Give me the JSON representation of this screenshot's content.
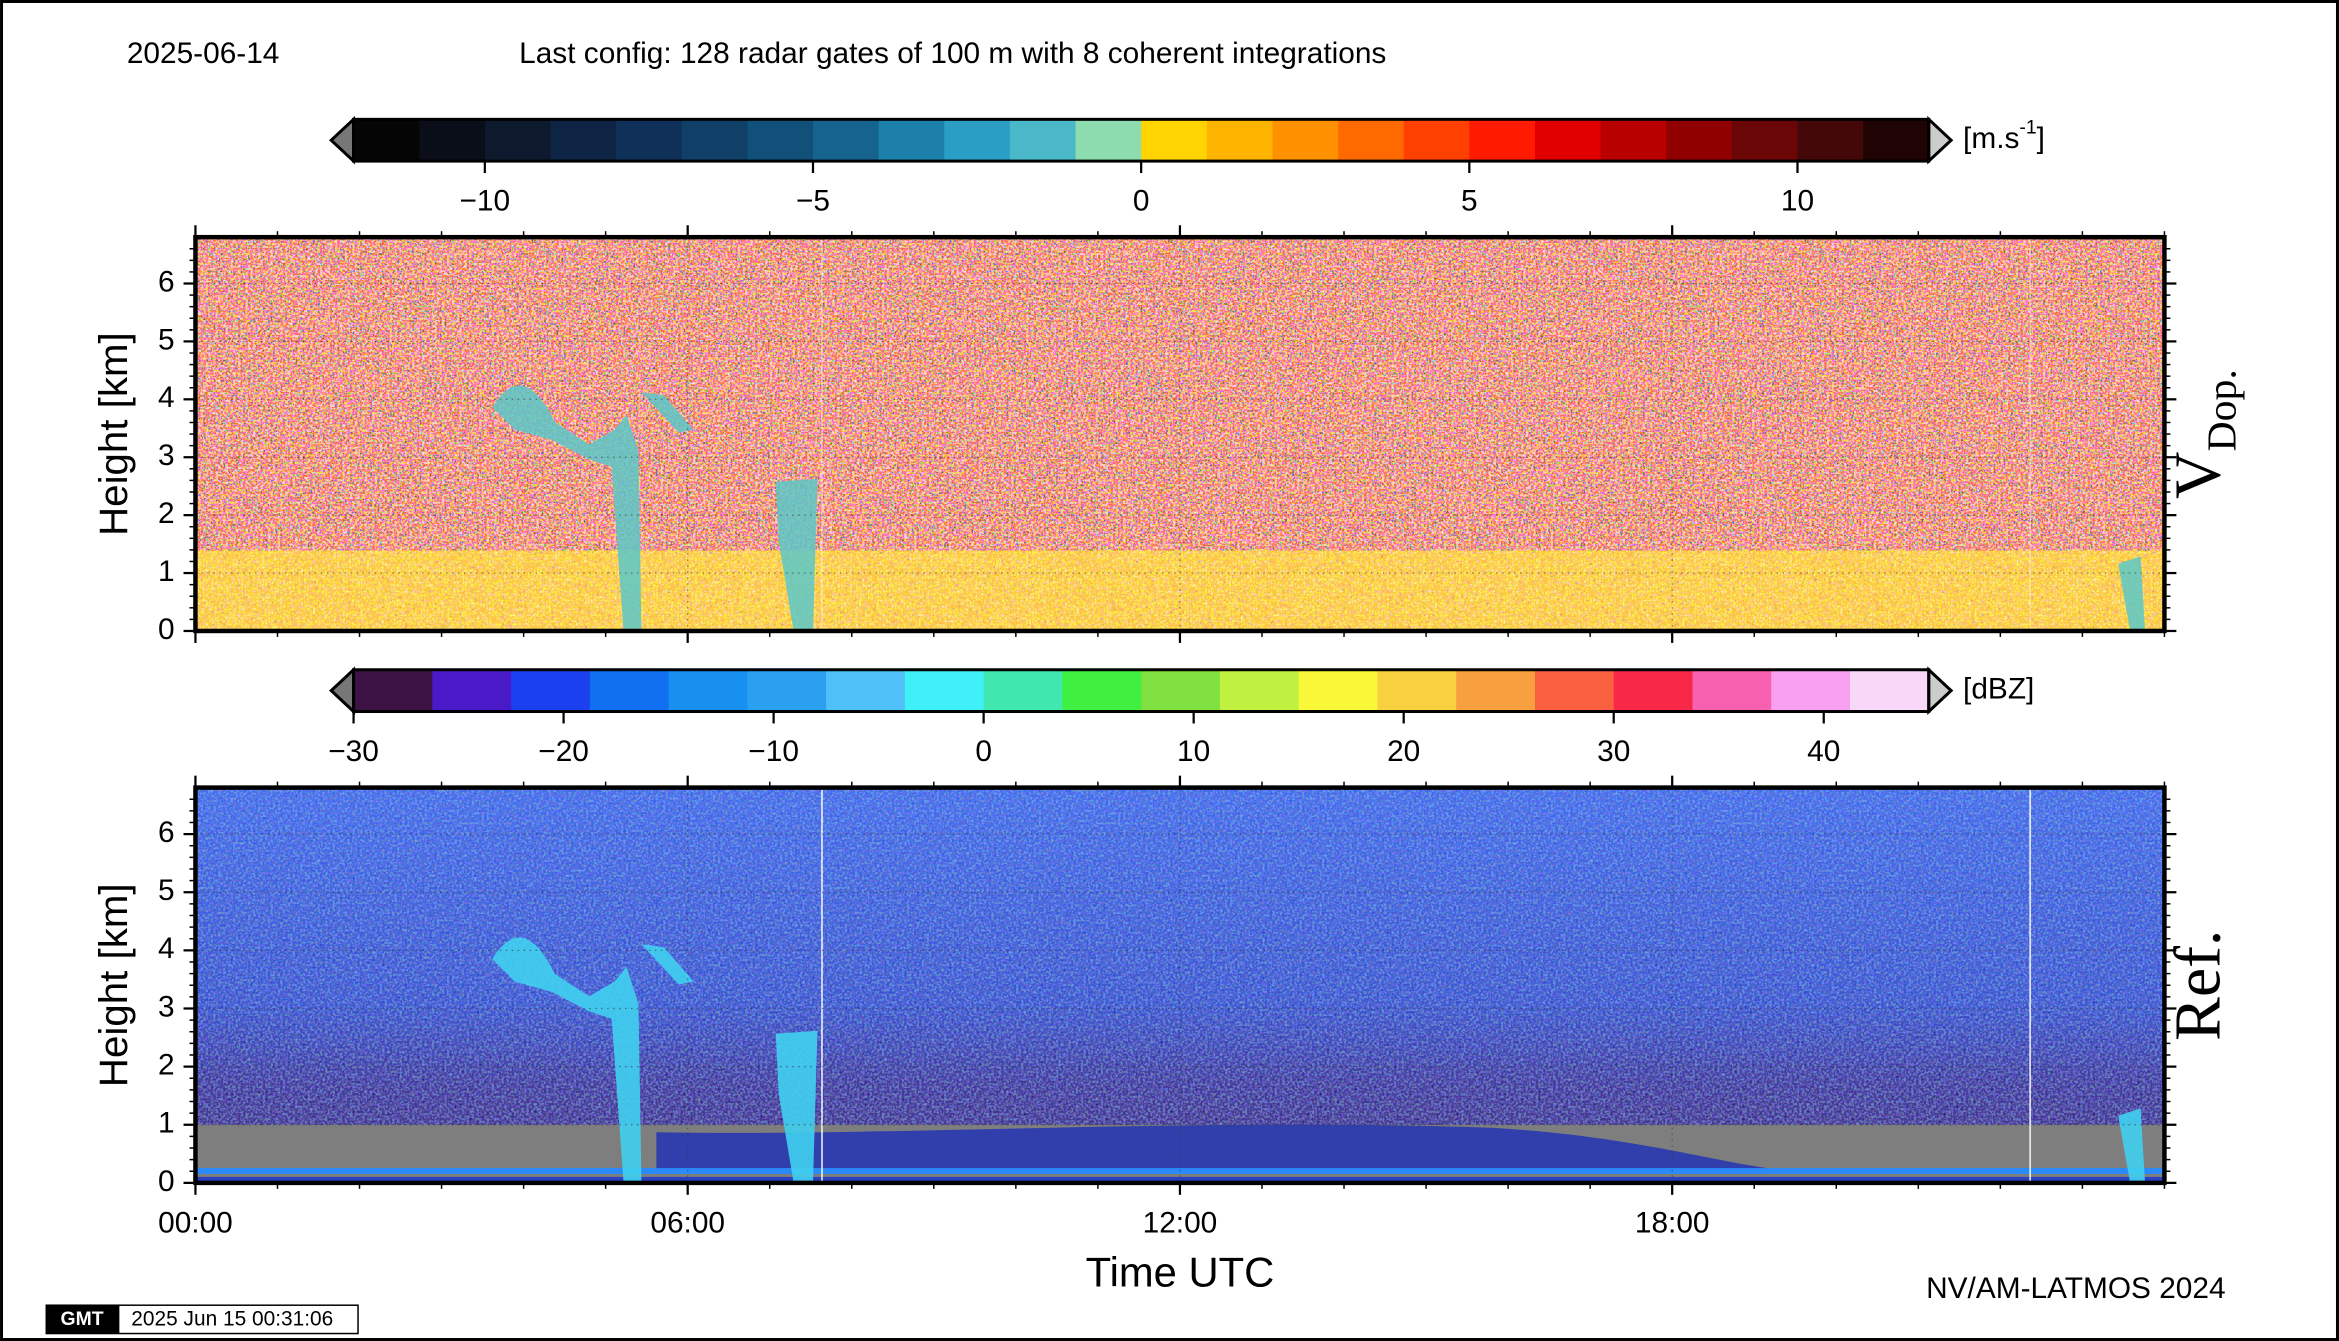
{
  "header": {
    "date": "2025-06-14",
    "config": "Last config: 128 radar gates of 100 m with 8 coherent integrations"
  },
  "chart_data": [
    {
      "type": "heatmap",
      "ylabel": "Height [km]",
      "ylim": [
        0,
        6.8
      ],
      "yticks": [
        0,
        1,
        2,
        3,
        4,
        5,
        6
      ],
      "grid": true,
      "side_label": "V",
      "side_label_sub": "Dop.",
      "colorbar": {
        "clim": [
          -12,
          12
        ],
        "ticks": [
          {
            "value": -10,
            "label": "−10"
          },
          {
            "value": -5,
            "label": "−5"
          },
          0,
          5,
          10
        ],
        "unit": "[m.s",
        "unit_sup": "-1",
        "unit_end": "]",
        "colors": [
          "#050505",
          "#0a0e18",
          "#0d1a2e",
          "#0e2444",
          "#0f3058",
          "#104068",
          "#115078",
          "#15638e",
          "#1d80aa",
          "#2a9ec4",
          "#4ab8c8",
          "#8ddcb0",
          "#ffd400",
          "#ffb400",
          "#ff9000",
          "#ff6a00",
          "#ff4000",
          "#ff1a00",
          "#e00000",
          "#b80000",
          "#900000",
          "#6a0606",
          "#440808",
          "#200404"
        ]
      }
    },
    {
      "type": "heatmap",
      "ylabel": "Height [km]",
      "ylim": [
        0,
        6.8
      ],
      "yticks": [
        0,
        1,
        2,
        3,
        4,
        5,
        6
      ],
      "grid": true,
      "side_label": "Ref.",
      "xlabel": "Time UTC",
      "xlim": [
        0,
        24
      ],
      "xticks": [
        {
          "value": 0,
          "label": "00:00"
        },
        {
          "value": 6,
          "label": "06:00"
        },
        {
          "value": 12,
          "label": "12:00"
        },
        {
          "value": 18,
          "label": "18:00"
        }
      ],
      "colorbar": {
        "clim": [
          -30,
          45
        ],
        "ticks": [
          {
            "value": -30,
            "label": "−30"
          },
          {
            "value": -20,
            "label": "−20"
          },
          {
            "value": -10,
            "label": "−10"
          },
          0,
          10,
          20,
          30,
          40
        ],
        "unit": "[dBZ]",
        "colors": [
          "#3d1245",
          "#4a1ac8",
          "#1a40f0",
          "#1070f0",
          "#1890f0",
          "#2ba0f0",
          "#50c0f8",
          "#40f0f8",
          "#40e8b0",
          "#40f040",
          "#80e040",
          "#c0f040",
          "#f8f838",
          "#f8d040",
          "#f8a040",
          "#f86040",
          "#f82848",
          "#f860b0",
          "#f8a0f0",
          "#f8d8f8"
        ]
      }
    }
  ],
  "footer": {
    "credit": "NV/AM-LATMOS 2024",
    "logo": "GMT",
    "timestamp": "2025 Jun 15 00:31:06"
  }
}
